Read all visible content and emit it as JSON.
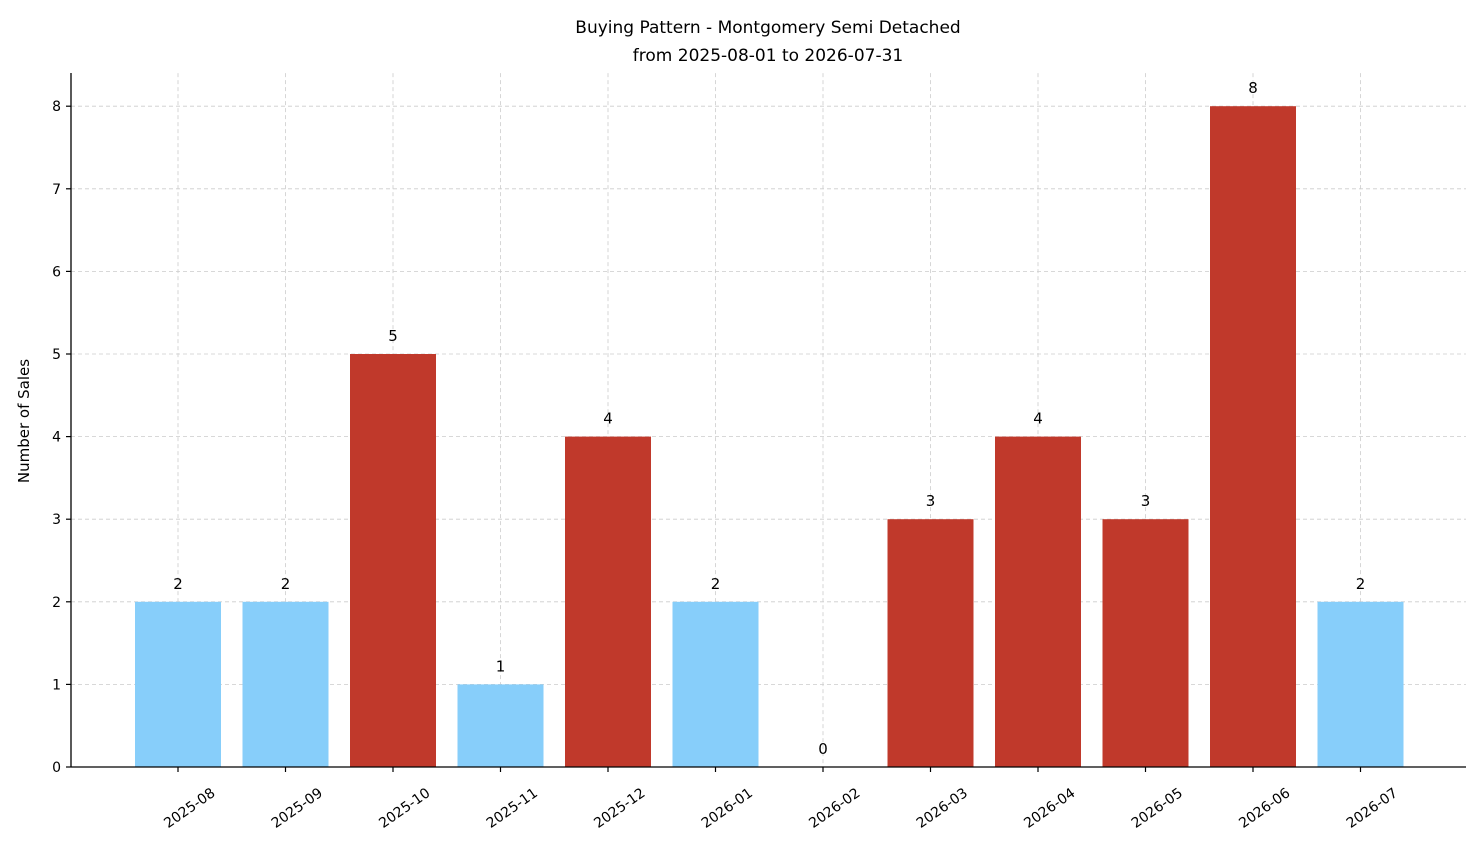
{
  "chart_data": {
    "type": "bar",
    "title": "Buying Pattern - Montgomery Semi Detached",
    "subtitle": "from 2025-08-01 to 2026-07-31",
    "xlabel": "",
    "ylabel": "Number of Sales",
    "categories": [
      "2025-08",
      "2025-09",
      "2025-10",
      "2025-11",
      "2025-12",
      "2026-01",
      "2026-02",
      "2026-03",
      "2026-04",
      "2026-05",
      "2026-06",
      "2026-07"
    ],
    "values": [
      2,
      2,
      5,
      1,
      4,
      2,
      0,
      3,
      4,
      3,
      8,
      2
    ],
    "colors": [
      "#87cefa",
      "#87cefa",
      "#c0392b",
      "#87cefa",
      "#c0392b",
      "#87cefa",
      "#87cefa",
      "#c0392b",
      "#c0392b",
      "#c0392b",
      "#c0392b",
      "#87cefa"
    ],
    "ylim": [
      0,
      8.4
    ],
    "yticks": [
      0,
      1,
      2,
      3,
      4,
      5,
      6,
      7,
      8
    ],
    "grid": true,
    "legend": "none"
  }
}
